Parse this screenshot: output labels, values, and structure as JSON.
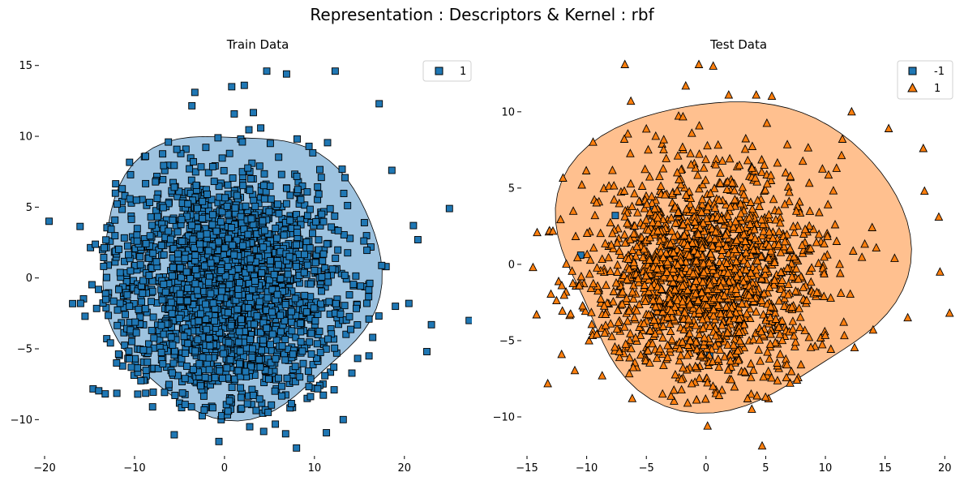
{
  "suptitle": "Representation : Descriptors & Kernel : rbf",
  "colors": {
    "blue": "#1f77b4",
    "orange": "#ff7f0e",
    "blue_region": "#9ec3e0",
    "orange_region": "#ffc08f",
    "edge": "#000000"
  },
  "chart_data": [
    {
      "type": "scatter",
      "title": "Train Data",
      "xlabel": "",
      "ylabel": "",
      "xlim": [
        -20,
        27.5
      ],
      "ylim": [
        -12.5,
        15.5
      ],
      "xticks": [
        -20,
        -10,
        0,
        10,
        20
      ],
      "yticks": [
        -10,
        -5,
        0,
        5,
        10,
        15
      ],
      "grid": false,
      "legend": "top-right",
      "decision_region": {
        "class": "1",
        "color": "#9ec3e0",
        "center": [
          1.5,
          0.5
        ],
        "radius_x": 15.5,
        "radius_y": 10
      },
      "series": [
        {
          "name": "1",
          "marker": "square",
          "color": "#1f77b4",
          "approx_count": 2400,
          "center": [
            0.5,
            -0.5
          ],
          "spread": [
            6.5,
            4.2
          ],
          "outliers": [
            [
              -19.5,
              4
            ],
            [
              25,
              4.9
            ],
            [
              27.2,
              -3
            ],
            [
              22.5,
              -5.2
            ],
            [
              23,
              -3.3
            ],
            [
              21,
              3.7
            ],
            [
              21.5,
              2.7
            ],
            [
              12.3,
              14.6
            ],
            [
              4.7,
              14.6
            ],
            [
              8,
              -12
            ],
            [
              2.8,
              -10.5
            ],
            [
              17.2,
              12.3
            ],
            [
              18.6,
              7.6
            ],
            [
              -16,
              -1.8
            ],
            [
              -15.5,
              -2.7
            ],
            [
              -3.3,
              13.1
            ],
            [
              13.2,
              -10
            ],
            [
              6.8,
              -11
            ],
            [
              6.9,
              14.4
            ],
            [
              0.8,
              13.5
            ],
            [
              2.2,
              13.6
            ],
            [
              -12,
              -6
            ],
            [
              19,
              -2
            ],
            [
              20.5,
              -1.8
            ]
          ]
        }
      ]
    },
    {
      "type": "scatter",
      "title": "Test Data",
      "xlabel": "",
      "ylabel": "",
      "xlim": [
        -15,
        21
      ],
      "ylim": [
        -12.5,
        13.5
      ],
      "xticks": [
        -15,
        -10,
        -5,
        0,
        5,
        10,
        15,
        20
      ],
      "yticks": [
        -10,
        -5,
        0,
        5,
        10
      ],
      "grid": false,
      "legend": "top-right",
      "decision_region": {
        "class": "1",
        "color": "#ffc08f",
        "center": [
          2,
          1
        ],
        "radius_x": 14.5,
        "radius_y": 10
      },
      "series": [
        {
          "name": "-1",
          "marker": "square",
          "color": "#1f77b4",
          "approx_count": 4,
          "points": [
            [
              -4.4,
              3.5
            ],
            [
              -10.5,
              0.6
            ],
            [
              -7.6,
              3.2
            ],
            [
              0.3,
              -5.9
            ]
          ]
        },
        {
          "name": "1",
          "marker": "triangle",
          "color": "#ff7f0e",
          "approx_count": 1800,
          "center": [
            0,
            -0.5
          ],
          "spread": [
            4.8,
            3.6
          ],
          "outliers": [
            [
              -14.5,
              -0.2
            ],
            [
              -14.2,
              -3.3
            ],
            [
              -6.8,
              13.1
            ],
            [
              -0.6,
              13.1
            ],
            [
              0.6,
              13
            ],
            [
              20.4,
              -3.2
            ],
            [
              19.5,
              3.1
            ],
            [
              19.6,
              -0.5
            ],
            [
              18.3,
              4.8
            ],
            [
              18.2,
              7.6
            ],
            [
              4.7,
              -11.9
            ],
            [
              15.3,
              8.9
            ],
            [
              12.2,
              10
            ],
            [
              14,
              -4.3
            ],
            [
              1.9,
              11.1
            ],
            [
              -6.3,
              10.7
            ],
            [
              -12.1,
              -5.9
            ],
            [
              16.9,
              -3.5
            ],
            [
              15.8,
              0.4
            ],
            [
              -1.7,
              11.7
            ],
            [
              4.2,
              11.1
            ]
          ]
        }
      ]
    }
  ]
}
